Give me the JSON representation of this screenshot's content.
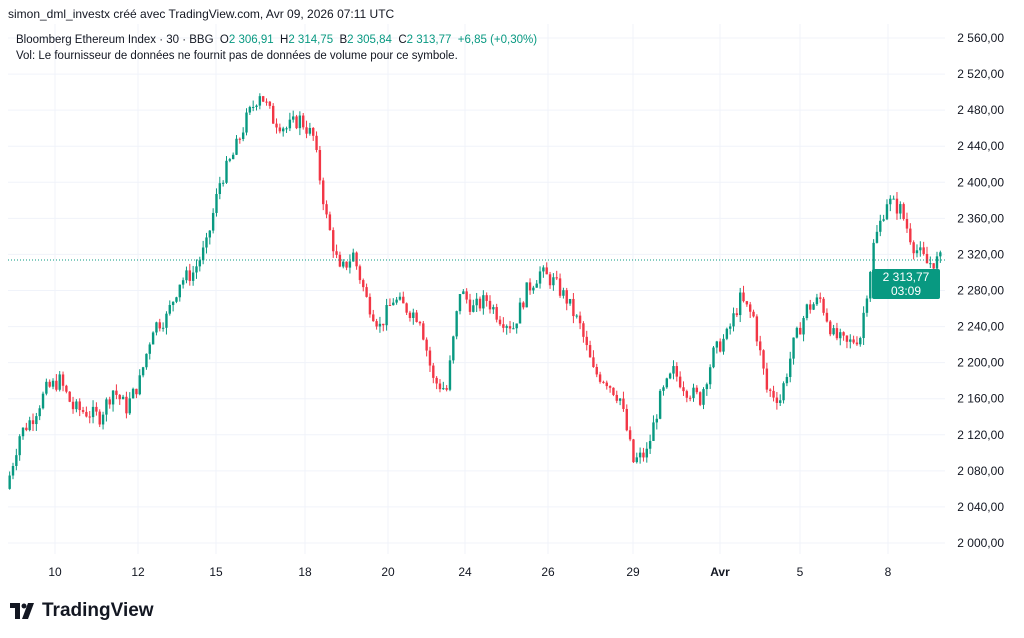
{
  "header": {
    "credit": "simon_dml_investx créé avec TradingView.com, Avr 09, 2026 07:11 UTC"
  },
  "legend": {
    "symbol": "Bloomberg Ethereum Index · 30 · BBG",
    "o_label": "O",
    "o": "2 306,91",
    "h_label": "H",
    "h": "2 314,75",
    "b_label": "B",
    "b": "2 305,84",
    "c_label": "C",
    "c": "2 313,77",
    "change": "+6,85 (+0,30%)",
    "volume_note": "Vol: Le fournisseur de données ne fournit pas de données de volume pour ce symbole."
  },
  "price_tag": {
    "price": "2 313,77",
    "countdown": "03:09"
  },
  "logo": {
    "text": "TradingView"
  },
  "chart_data": {
    "type": "candlestick",
    "title": "Bloomberg Ethereum Index · 30 · BBG",
    "ylim": [
      2000,
      2560
    ],
    "yticks": [
      "2 560,00",
      "2 520,00",
      "2 480,00",
      "2 440,00",
      "2 400,00",
      "2 360,00",
      "2 320,00",
      "2 280,00",
      "2 240,00",
      "2 200,00",
      "2 160,00",
      "2 120,00",
      "2 080,00",
      "2 040,00",
      "2 000,00"
    ],
    "ytick_values": [
      2560,
      2520,
      2480,
      2440,
      2400,
      2360,
      2320,
      2280,
      2240,
      2200,
      2160,
      2120,
      2080,
      2040,
      2000
    ],
    "xticks": [
      "10",
      "12",
      "15",
      "18",
      "20",
      "24",
      "26",
      "29",
      "Avr",
      "5",
      "8"
    ],
    "last_price": 2313.77,
    "colors": {
      "up": "#089981",
      "down": "#f23645"
    },
    "closes_approx": [
      2060,
      2120,
      2140,
      2170,
      2180,
      2150,
      2145,
      2140,
      2170,
      2150,
      2180,
      2240,
      2250,
      2290,
      2300,
      2330,
      2400,
      2430,
      2470,
      2500,
      2470,
      2460,
      2470,
      2450,
      2360,
      2300,
      2320,
      2270,
      2240,
      2270,
      2260,
      2250,
      2180,
      2170,
      2280,
      2260,
      2270,
      2250,
      2240,
      2280,
      2300,
      2290,
      2270,
      2240,
      2190,
      2180,
      2160,
      2090,
      2100,
      2160,
      2190,
      2170,
      2160,
      2210,
      2230,
      2270,
      2250,
      2170,
      2160,
      2220,
      2260,
      2270,
      2230,
      2220,
      2230,
      2330,
      2380,
      2370,
      2330,
      2310,
      2314
    ]
  }
}
